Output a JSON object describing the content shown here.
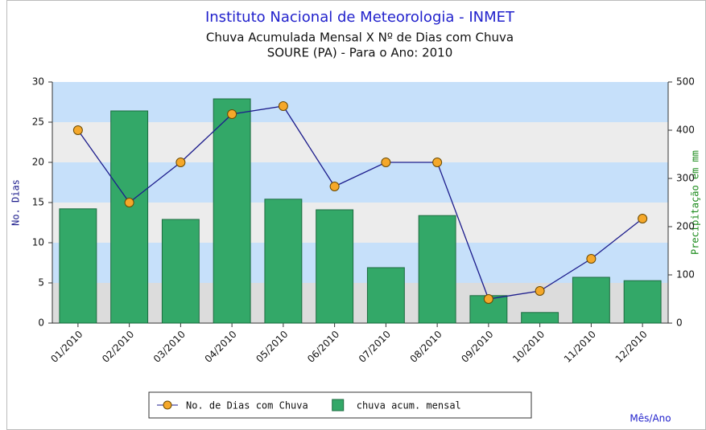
{
  "chart_data": {
    "type": "combo",
    "title": "Instituto Nacional de Meteorologia - INMET",
    "subtitle": "Chuva Acumulada Mensal X Nº de Dias com Chuva",
    "subtitle2": "SOURE (PA) - Para o Ano: 2010",
    "ylabel": "No. Dias",
    "y2label": "Precipitação em mm",
    "xlabel": "Mês/Ano",
    "categories": [
      "01/2010",
      "02/2010",
      "03/2010",
      "04/2010",
      "05/2010",
      "06/2010",
      "07/2010",
      "08/2010",
      "09/2010",
      "10/2010",
      "11/2010",
      "12/2010"
    ],
    "series": [
      {
        "name": "No. de Dias com Chuva",
        "type": "line",
        "axis": "y",
        "color": "#1c1c8c",
        "marker_color": "#f5a82a",
        "values": [
          24,
          15,
          20,
          26,
          27,
          17,
          20,
          20,
          3,
          4,
          8,
          13
        ]
      },
      {
        "name": "chuva acum. mensal",
        "type": "bar",
        "axis": "y2",
        "color": "#33a868",
        "values": [
          237,
          440,
          215,
          465,
          257,
          235,
          115,
          223,
          57,
          22,
          95,
          88
        ]
      }
    ],
    "ylim": [
      0,
      30
    ],
    "yticks": [
      0,
      5,
      10,
      15,
      20,
      25,
      30
    ],
    "y2lim": [
      0,
      500
    ],
    "y2ticks": [
      0,
      100,
      200,
      300,
      400,
      500
    ],
    "band_colors": [
      "#dcdcdc",
      "#c6e0fa",
      "#ececec",
      "#c6e0fa",
      "#ececec",
      "#c6e0fa"
    ]
  }
}
